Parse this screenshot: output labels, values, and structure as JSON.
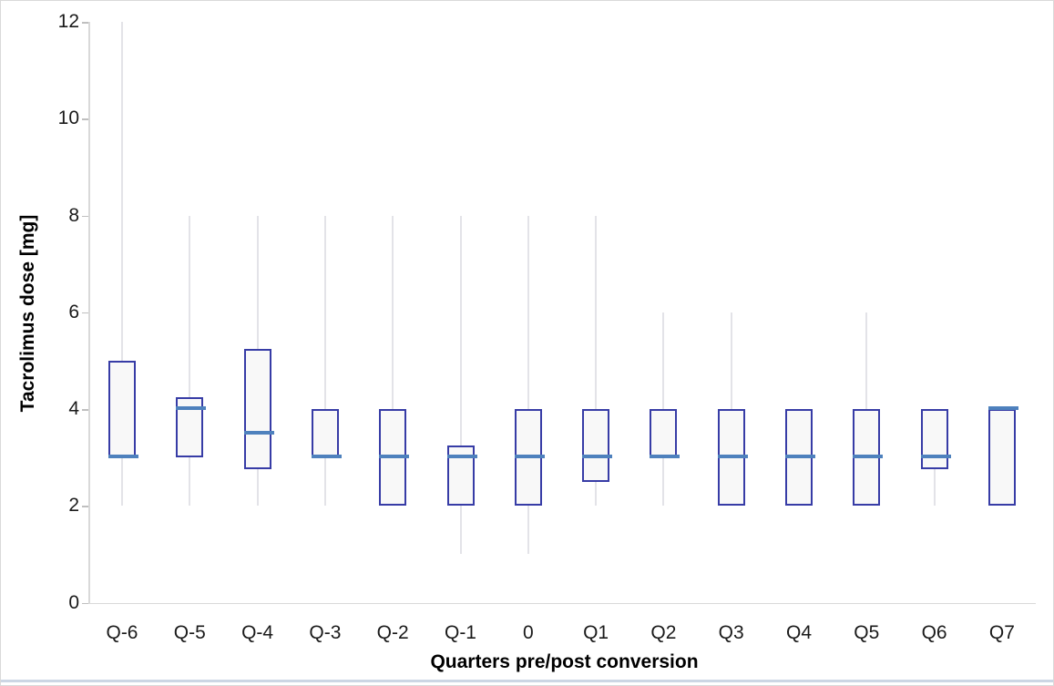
{
  "chart_data": {
    "type": "box",
    "title": "",
    "xlabel": "Quarters pre/post conversion",
    "ylabel": "Tacrolimus dose [mg]",
    "ylim": [
      0,
      12
    ],
    "yticks": [
      0,
      2,
      4,
      6,
      8,
      10,
      12
    ],
    "grid": "off",
    "legend": "none",
    "categories": [
      "Q-6",
      "Q-5",
      "Q-4",
      "Q-3",
      "Q-2",
      "Q-1",
      "0",
      "Q1",
      "Q2",
      "Q3",
      "Q4",
      "Q5",
      "Q6",
      "Q7"
    ],
    "boxes": [
      {
        "category": "Q-6",
        "whisker_low": 2,
        "q1": 3,
        "median": 3,
        "q3": 5,
        "whisker_high": 12
      },
      {
        "category": "Q-5",
        "whisker_low": 2,
        "q1": 3,
        "median": 4,
        "q3": 4.25,
        "whisker_high": 8
      },
      {
        "category": "Q-4",
        "whisker_low": 2,
        "q1": 2.75,
        "median": 3.5,
        "q3": 5.25,
        "whisker_high": 8
      },
      {
        "category": "Q-3",
        "whisker_low": 2,
        "q1": 3,
        "median": 3,
        "q3": 4,
        "whisker_high": 8
      },
      {
        "category": "Q-2",
        "whisker_low": 2,
        "q1": 2,
        "median": 3,
        "q3": 4,
        "whisker_high": 8
      },
      {
        "category": "Q-1",
        "whisker_low": 1,
        "q1": 2,
        "median": 3,
        "q3": 3.25,
        "whisker_high": 8
      },
      {
        "category": "0",
        "whisker_low": 1,
        "q1": 2,
        "median": 3,
        "q3": 4,
        "whisker_high": 8
      },
      {
        "category": "Q1",
        "whisker_low": 2,
        "q1": 2.5,
        "median": 3,
        "q3": 4,
        "whisker_high": 8
      },
      {
        "category": "Q2",
        "whisker_low": 2,
        "q1": 3,
        "median": 3,
        "q3": 4,
        "whisker_high": 6
      },
      {
        "category": "Q3",
        "whisker_low": 2,
        "q1": 2,
        "median": 3,
        "q3": 4,
        "whisker_high": 6
      },
      {
        "category": "Q4",
        "whisker_low": 2,
        "q1": 2,
        "median": 3,
        "q3": 4,
        "whisker_high": 4
      },
      {
        "category": "Q5",
        "whisker_low": 2,
        "q1": 2,
        "median": 3,
        "q3": 4,
        "whisker_high": 6
      },
      {
        "category": "Q6",
        "whisker_low": 2,
        "q1": 2.75,
        "median": 3,
        "q3": 4,
        "whisker_high": 4
      },
      {
        "category": "Q7",
        "whisker_low": 2,
        "q1": 2,
        "median": 4,
        "q3": 4,
        "whisker_high": 4
      }
    ],
    "colors": {
      "box_border": "#373ca6",
      "box_fill": "#f8f8f8",
      "median_line": "#4e81bd",
      "whisker": "#e3e3e8",
      "axis_line": "#d9d9d9",
      "text": "#1a1a1a"
    }
  }
}
